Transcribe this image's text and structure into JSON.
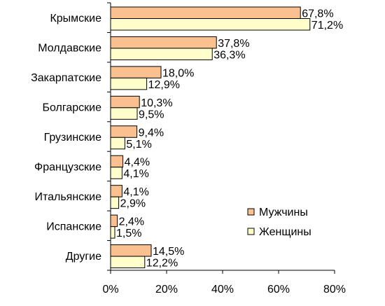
{
  "chart_data": {
    "type": "bar",
    "orientation": "horizontal",
    "categories": [
      "Крымские",
      "Молдавские",
      "Закарпатские",
      "Болгарские",
      "Грузинские",
      "Французские",
      "Итальянские",
      "Испанские",
      "Другие"
    ],
    "series": [
      {
        "name": "Мужчины",
        "color": "#FAC090",
        "values": [
          67.8,
          37.8,
          18.0,
          10.3,
          9.4,
          4.4,
          4.1,
          2.4,
          14.5
        ],
        "labels": [
          "67,8%",
          "37,8%",
          "18,0%",
          "10,3%",
          "9,4%",
          "4,4%",
          "4,1%",
          "2,4%",
          "14,5%"
        ]
      },
      {
        "name": "Женщины",
        "color": "#FFFFCC",
        "values": [
          71.2,
          36.3,
          12.9,
          9.5,
          5.1,
          4.1,
          2.9,
          1.5,
          12.2
        ],
        "labels": [
          "71,2%",
          "36,3%",
          "12,9%",
          "9,5%",
          "5,1%",
          "4,1%",
          "2,9%",
          "1,5%",
          "12,2%"
        ]
      }
    ],
    "xlim": [
      0,
      80
    ],
    "xticks": [
      0,
      20,
      40,
      60,
      80
    ],
    "xtick_labels": [
      "0%",
      "20%",
      "40%",
      "60%",
      "80%"
    ],
    "grid": false,
    "legend": "bottom-right",
    "title": "",
    "xlabel": "",
    "ylabel": ""
  }
}
